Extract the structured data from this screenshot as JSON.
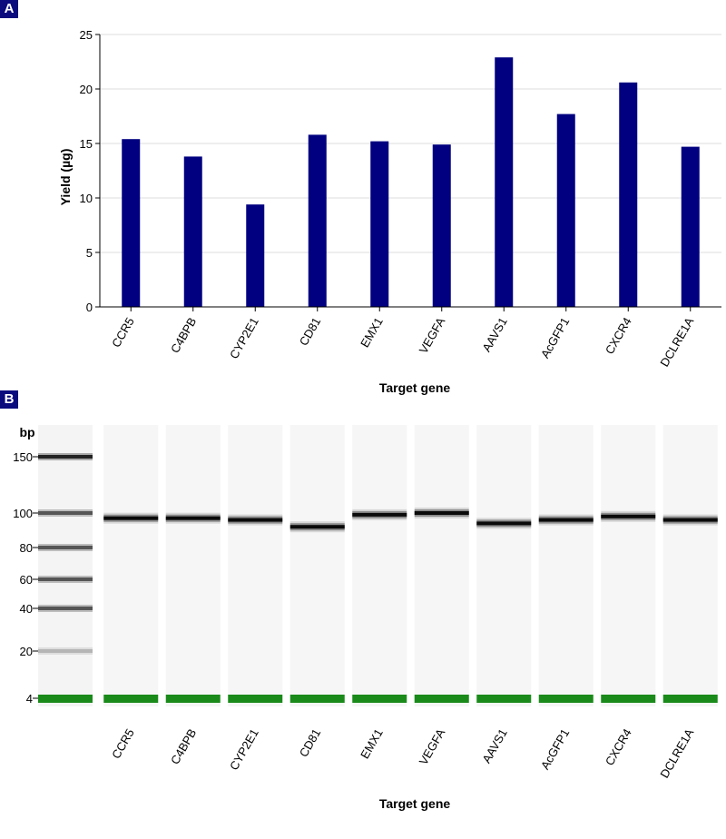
{
  "panels": {
    "a_label": "A",
    "b_label": "B"
  },
  "chart_data": [
    {
      "type": "bar",
      "title": "",
      "xlabel": "Target gene",
      "ylabel": "Yield (µg)",
      "ylim": [
        0,
        25
      ],
      "yticks": [
        0,
        5,
        10,
        15,
        20,
        25
      ],
      "grid": true,
      "categories": [
        "CCR5",
        "C4BPB",
        "CYP2E1",
        "CD81",
        "EMX1",
        "VEGFA",
        "AAVS1",
        "AcGFP1",
        "CXCR4",
        "DCLRE1A"
      ],
      "values": [
        15.4,
        13.8,
        9.4,
        15.8,
        15.2,
        14.9,
        22.9,
        17.7,
        20.6,
        14.7
      ],
      "color": "#000080"
    },
    {
      "type": "gel",
      "xlabel": "Target gene",
      "ylabel": "bp",
      "ladder_sizes": [
        150,
        100,
        80,
        60,
        40,
        20,
        4
      ],
      "lanes": [
        "CCR5",
        "C4BPB",
        "CYP2E1",
        "CD81",
        "EMX1",
        "VEGFA",
        "AAVS1",
        "AcGFP1",
        "CXCR4",
        "DCLRE1A"
      ],
      "band_sizes_bp": [
        97,
        97,
        96,
        92,
        99,
        100,
        94,
        96,
        98,
        96
      ],
      "marker_bp": 4,
      "marker_color": "#1a8a1a"
    }
  ]
}
